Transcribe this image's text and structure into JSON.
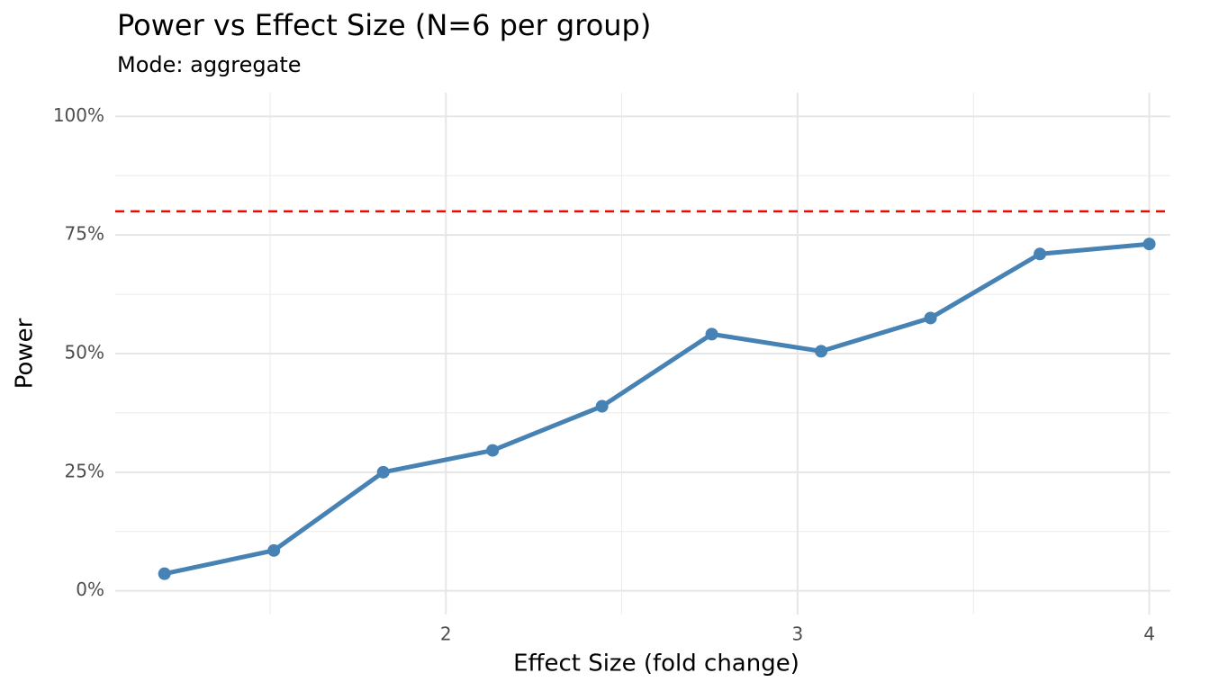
{
  "chart_data": {
    "type": "line",
    "title": "Power vs Effect Size (N=6 per group)",
    "subtitle": "Mode: aggregate",
    "x_label": "Effect Size (fold change)",
    "y_label": "Power",
    "x": [
      1.2,
      1.511,
      1.822,
      2.133,
      2.444,
      2.756,
      3.067,
      3.378,
      3.689,
      4.0
    ],
    "series": [
      {
        "name": "Power",
        "color": "#4682b4",
        "values": [
          3.6,
          8.5,
          25.0,
          29.6,
          38.9,
          54.1,
          50.5,
          57.5,
          71.0,
          73.1
        ]
      }
    ],
    "xlim": [
      1.06,
      4.06
    ],
    "ylim": [
      -5,
      105
    ],
    "xticks": [
      2,
      3,
      4
    ],
    "yticks": [
      {
        "value": 0,
        "label": "0%"
      },
      {
        "value": 25,
        "label": "25%"
      },
      {
        "value": 50,
        "label": "50%"
      },
      {
        "value": 75,
        "label": "75%"
      },
      {
        "value": 100,
        "label": "100%"
      }
    ],
    "x_minor_grid": [
      1.5,
      2.5,
      3.5
    ],
    "y_minor_grid": [
      12.5,
      37.5,
      62.5,
      87.5
    ],
    "grid": true,
    "hline": {
      "value": 80,
      "color": "#ff0000",
      "linestyle": "dashed"
    }
  }
}
